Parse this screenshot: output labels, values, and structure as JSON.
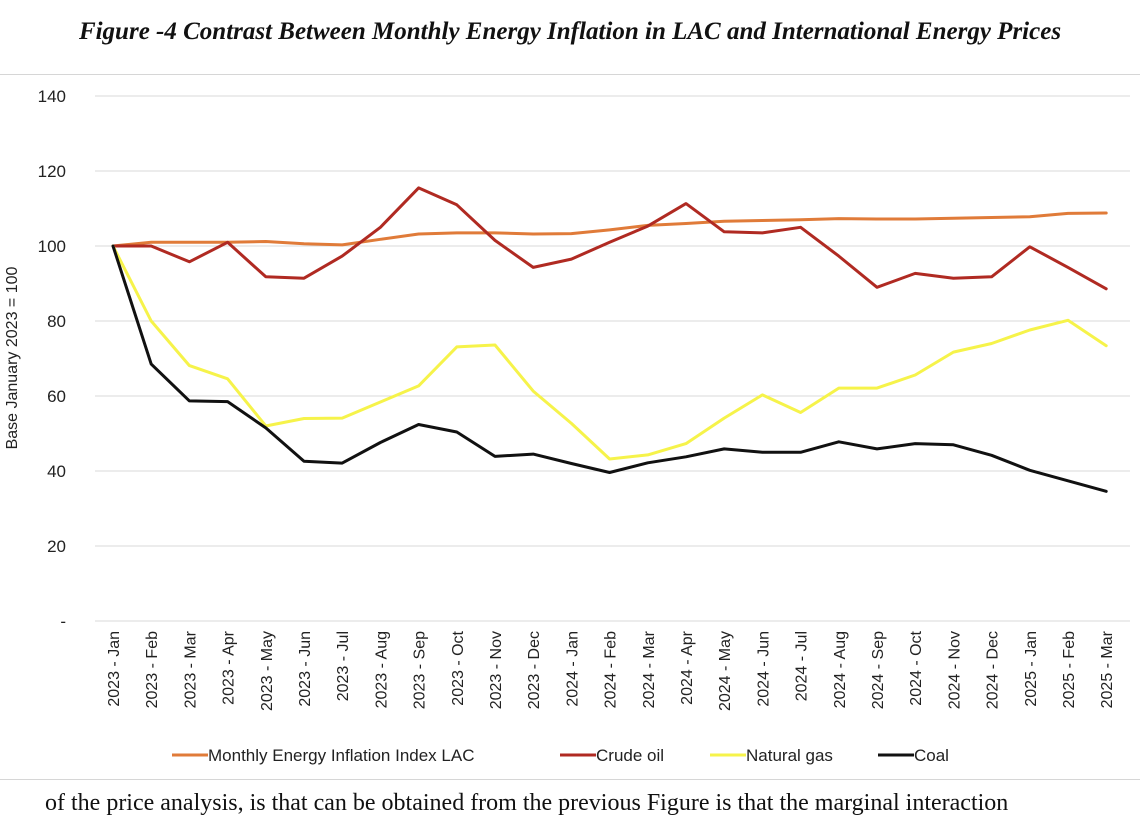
{
  "figure_title": "Figure -4 Contrast Between Monthly Energy Inflation in LAC and International Energy Prices",
  "body_text_fragment": "of the price analysis, is that can be obtained from the previous Figure is that the marginal interaction",
  "chart_data": {
    "type": "line",
    "title": "",
    "xlabel": "",
    "ylabel": "Base January 2023 = 100",
    "ylim": [
      0,
      140
    ],
    "yticks": [
      0,
      20,
      40,
      60,
      80,
      100,
      120,
      140
    ],
    "ytick_labels": [
      "-",
      "20",
      "40",
      "60",
      "80",
      "100",
      "120",
      "140"
    ],
    "grid": "horizontal",
    "legend_position": "bottom",
    "categories": [
      "2023 - Jan",
      "2023 - Feb",
      "2023 - Mar",
      "2023 - Apr",
      "2023 - May",
      "2023 - Jun",
      "2023 - Jul",
      "2023 - Aug",
      "2023 - Sep",
      "2023 - Oct",
      "2023 - Nov",
      "2023 - Dec",
      "2024 - Jan",
      "2024 - Feb",
      "2024 - Mar",
      "2024 - Apr",
      "2024 - May",
      "2024 - Jun",
      "2024 - Jul",
      "2024 - Aug",
      "2024 - Sep",
      "2024 - Oct",
      "2024 - Nov",
      "2024 - Dec",
      "2025 - Jan",
      "2025 - Feb",
      "2025 - Mar"
    ],
    "series": [
      {
        "name": "Monthly Energy Inflation Index LAC",
        "color": "#E07B39",
        "values": [
          100,
          101,
          101,
          101,
          101.2,
          100.6,
          100.3,
          101.8,
          103.2,
          103.5,
          103.5,
          103.2,
          103.3,
          104.3,
          105.5,
          106,
          106.6,
          106.8,
          107,
          107.3,
          107.2,
          107.2,
          107.4,
          107.6,
          107.8,
          108.7,
          108.8
        ]
      },
      {
        "name": "Crude oil",
        "color": "#B02A22",
        "values": [
          100,
          100,
          95.8,
          101,
          91.8,
          91.4,
          97.3,
          105,
          115.5,
          111,
          101.5,
          94.3,
          96.5,
          101,
          105.3,
          111.3,
          103.8,
          103.5,
          105,
          97.3,
          89,
          92.7,
          91.4,
          91.8,
          99.8,
          94.3,
          88.6
        ]
      },
      {
        "name": "Natural gas",
        "color": "#F6F34A",
        "values": [
          100,
          80,
          68.1,
          64.6,
          52,
          54,
          54.1,
          58.4,
          62.7,
          73.1,
          73.6,
          61.3,
          52.7,
          43.2,
          44.3,
          47.3,
          54.1,
          60.3,
          55.6,
          62.1,
          62.1,
          65.6,
          71.7,
          74,
          77.6,
          80.2,
          73.4
        ]
      },
      {
        "name": "Coal",
        "color": "#111111",
        "values": [
          100,
          68.5,
          58.7,
          58.5,
          51.5,
          42.6,
          42.1,
          47.6,
          52.4,
          50.4,
          43.9,
          44.5,
          42,
          39.6,
          42.2,
          43.8,
          45.9,
          45,
          45,
          47.8,
          45.9,
          47.3,
          47,
          44.2,
          40.2,
          37.4,
          34.6
        ]
      }
    ]
  }
}
